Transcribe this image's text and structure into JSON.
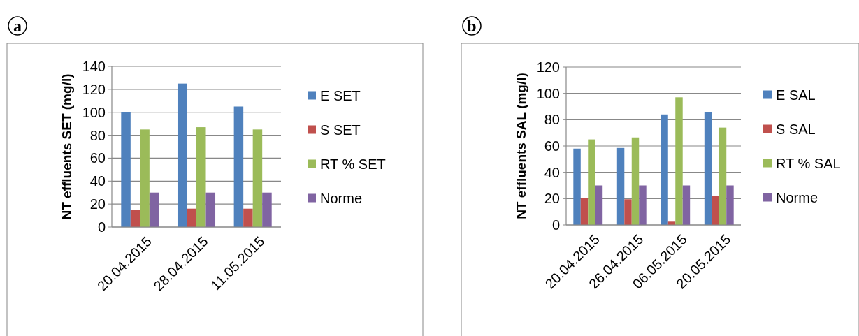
{
  "chart_data": [
    {
      "type": "bar",
      "title": "a",
      "ylabel": "NT effluents SET (mg/l)",
      "categories": [
        "20.04.2015",
        "28.04.2015",
        "11.05.2015"
      ],
      "series": [
        {
          "name": "E SET",
          "color": "#4f81bd",
          "values": [
            100,
            125,
            105
          ]
        },
        {
          "name": "S SET",
          "color": "#c0504d",
          "values": [
            15,
            16,
            16
          ]
        },
        {
          "name": "RT % SET",
          "color": "#9bbb59",
          "values": [
            85,
            87,
            85
          ]
        },
        {
          "name": "Norme",
          "color": "#8064a2",
          "values": [
            30,
            30,
            30
          ]
        }
      ],
      "ylim": [
        0,
        140
      ],
      "yticks": [
        0,
        20,
        40,
        60,
        80,
        100,
        120,
        140
      ],
      "grid": "y",
      "legend": "right"
    },
    {
      "type": "bar",
      "title": "b",
      "ylabel": "NT effluents  SAL (mg/l)",
      "categories": [
        "20.04.2015",
        "26.04.2015",
        "06.05.2015",
        "20.05.2015"
      ],
      "series": [
        {
          "name": "E SAL",
          "color": "#4f81bd",
          "values": [
            58,
            58.5,
            84,
            85.5
          ]
        },
        {
          "name": "S SAL",
          "color": "#c0504d",
          "values": [
            20.5,
            19.5,
            2.5,
            22
          ]
        },
        {
          "name": "RT % SAL",
          "color": "#9bbb59",
          "values": [
            65,
            66.5,
            97,
            74
          ]
        },
        {
          "name": "Norme",
          "color": "#8064a2",
          "values": [
            30,
            30,
            30,
            30
          ]
        }
      ],
      "ylim": [
        0,
        120
      ],
      "yticks": [
        0,
        20,
        40,
        60,
        80,
        100,
        120
      ],
      "grid": "y",
      "legend": "right"
    }
  ]
}
